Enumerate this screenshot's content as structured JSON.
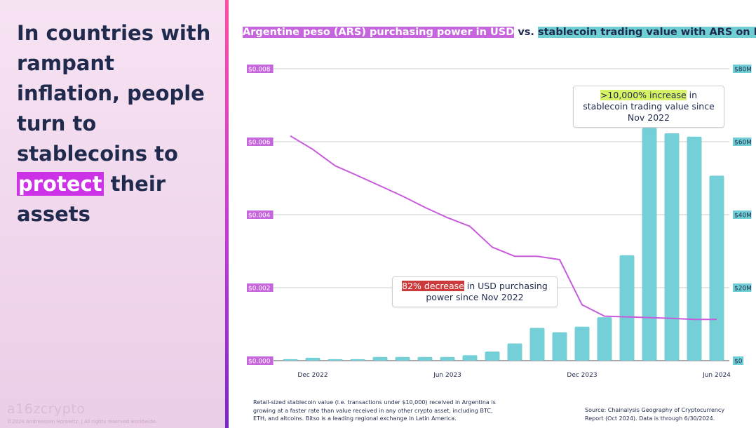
{
  "headline": {
    "before": "In countries with rampant inflation, people turn to stablecoins to ",
    "highlight": "protect",
    "after": " their assets"
  },
  "branding": {
    "logo": "a16zcrypto",
    "copyright": "©2024 Andreessen Horowitz.  |  All rights reserved worldwide."
  },
  "chart_title": {
    "part1": "Argentine peso (ARS) purchasing power in USD",
    "part2": " vs. ",
    "part3": "stablecoin trading value with ARS on Bitso"
  },
  "colors": {
    "line": "#c85bdc",
    "bar": "#74d0d6",
    "left_axis_bg": "#c666dd",
    "right_axis_bg": "#6fcfd4",
    "grid": "#cfcfcf"
  },
  "callouts": {
    "up": {
      "highlight": ">10,000% increase",
      "text": " in stablecoin trading value since Nov 2022"
    },
    "down": {
      "highlight": "82% decrease",
      "text": " in USD purchasing power since Nov 2022"
    }
  },
  "footnote": "Retail-sized stablecoin value (i.e. transactions under $10,000) received in Argentina is growing at a faster rate than value received in any other crypto asset, including BTC, ETH, and altcoins. Bitso is a leading regional exchange in Latin America.",
  "source": "Source: Chainalysis Geography of Cryptocurrency Report (Oct 2024). Data is through 6/30/2024.",
  "chart_data": {
    "type": "bar+line",
    "title": "Argentine peso (ARS) purchasing power in USD vs. stablecoin trading value with ARS on Bitso",
    "x_labels": [
      "Dec 2022",
      "Jun 2023",
      "Dec 2023",
      "Jun 2024"
    ],
    "x_label_indices": [
      1,
      7,
      13,
      19
    ],
    "periods": 20,
    "left_axis": {
      "label": "ARS purchasing power (USD)",
      "ticks": [
        "$0.000",
        "$0.002",
        "$0.004",
        "$0.006",
        "$0.008"
      ],
      "ylim": [
        0,
        0.008
      ]
    },
    "right_axis": {
      "label": "Stablecoin trading value (USD)",
      "ticks": [
        "$0",
        "$20M",
        "$40M",
        "$60M",
        "$80M"
      ],
      "ylim": [
        0,
        80
      ]
    },
    "series": [
      {
        "name": "Stablecoin trading value ($M)",
        "type": "bar",
        "axis": "right",
        "values": [
          0.4,
          0.8,
          0.4,
          0.4,
          1.0,
          1.0,
          1.0,
          1.0,
          1.5,
          2.5,
          4.7,
          9.0,
          7.8,
          9.3,
          11.9,
          28.9,
          63.8,
          62.3,
          61.4,
          50.7
        ]
      },
      {
        "name": "ARS purchasing power (USD)",
        "type": "line",
        "axis": "left",
        "values": [
          0.00616,
          0.00579,
          0.00534,
          0.00507,
          0.00479,
          0.00451,
          0.0042,
          0.00392,
          0.00368,
          0.00311,
          0.00286,
          0.00286,
          0.00277,
          0.00153,
          0.00122,
          0.0012,
          0.00118,
          0.00116,
          0.00113,
          0.00113
        ]
      }
    ]
  }
}
